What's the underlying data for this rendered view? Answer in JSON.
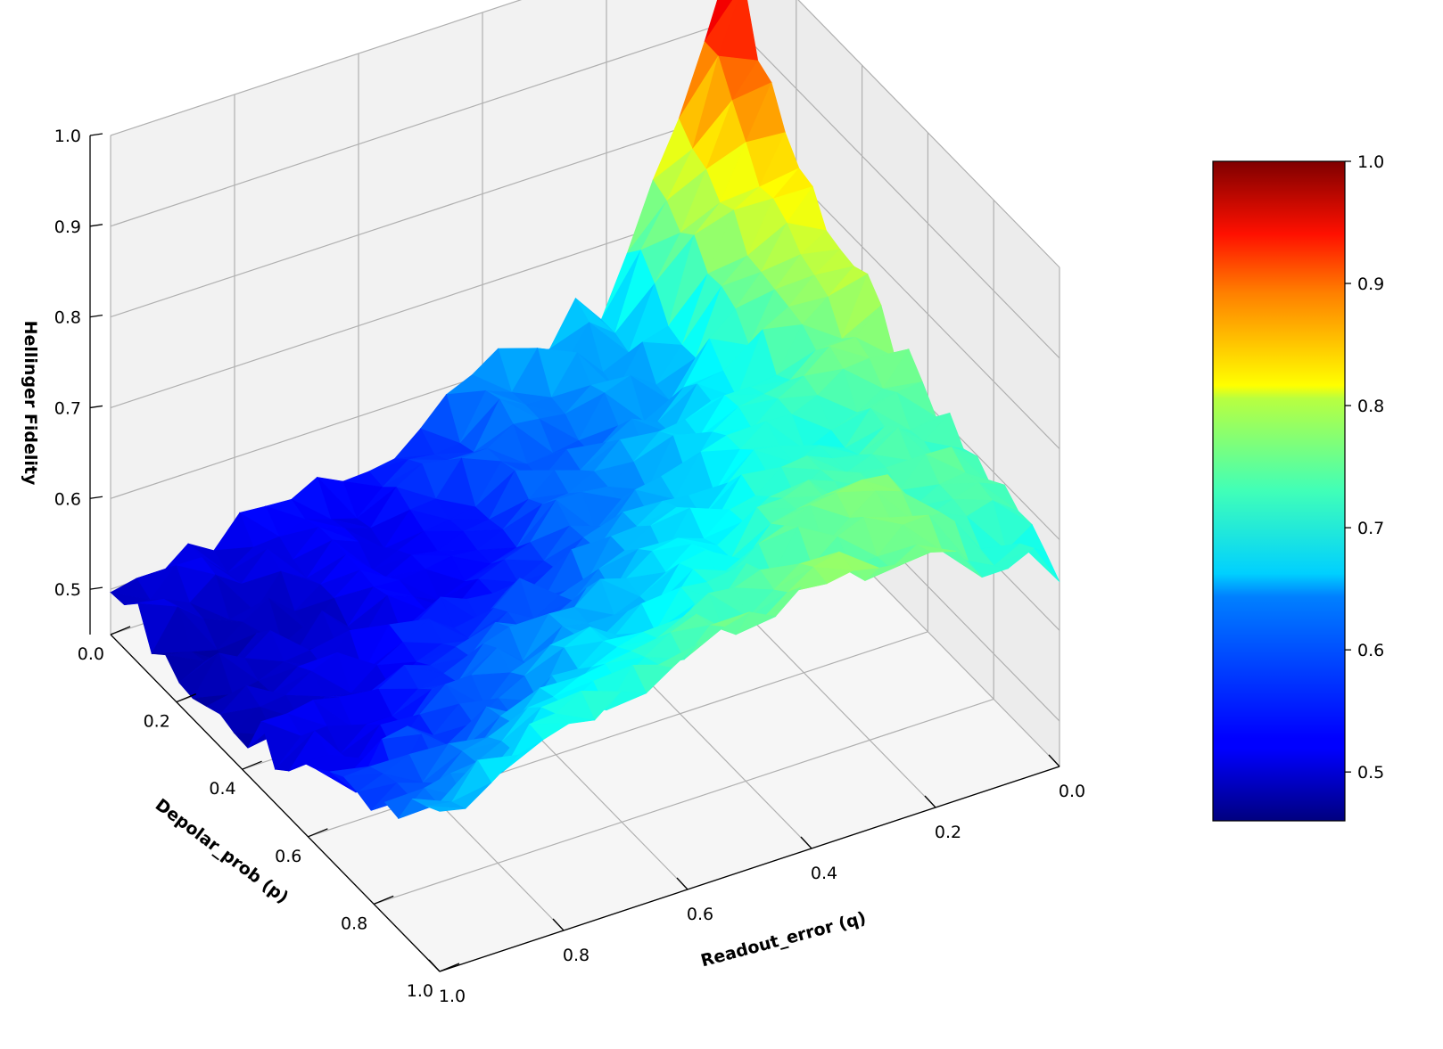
{
  "chart_data": {
    "type": "surface3d",
    "title": "",
    "xlabel": "Readout_error (q)",
    "ylabel": "Depolar_prob (p)",
    "zlabel": "Hellinger Fidelity",
    "xlim": [
      0.0,
      1.0
    ],
    "ylim": [
      0.0,
      1.0
    ],
    "zlim": [
      0.45,
      1.0
    ],
    "x_ticks": [
      "0.0",
      "0.2",
      "0.4",
      "0.6",
      "0.8",
      "1.0"
    ],
    "y_ticks": [
      "0.0",
      "0.2",
      "0.4",
      "0.6",
      "0.8",
      "1.0"
    ],
    "z_ticks": [
      "0.5",
      "0.6",
      "0.7",
      "0.8",
      "0.9",
      "1.0"
    ],
    "colormap": "jet",
    "colorbar": {
      "range": [
        0.46,
        1.0
      ],
      "ticks": [
        "0.5",
        "0.6",
        "0.7",
        "0.8",
        "0.9",
        "1.0"
      ]
    },
    "grid": true,
    "surface": {
      "q": [
        0.0,
        0.2,
        0.4,
        0.6,
        0.8,
        1.0
      ],
      "p": [
        0.0,
        0.2,
        0.4,
        0.6,
        0.8,
        1.0
      ],
      "fidelity": [
        [
          0.97,
          0.64,
          0.6,
          0.53,
          0.52,
          0.5
        ],
        [
          0.82,
          0.62,
          0.58,
          0.52,
          0.5,
          0.49
        ],
        [
          0.76,
          0.66,
          0.6,
          0.55,
          0.52,
          0.5
        ],
        [
          0.7,
          0.69,
          0.64,
          0.6,
          0.55,
          0.51
        ],
        [
          0.69,
          0.72,
          0.69,
          0.65,
          0.6,
          0.56
        ],
        [
          0.67,
          0.72,
          0.74,
          0.71,
          0.67,
          0.62
        ]
      ]
    }
  }
}
